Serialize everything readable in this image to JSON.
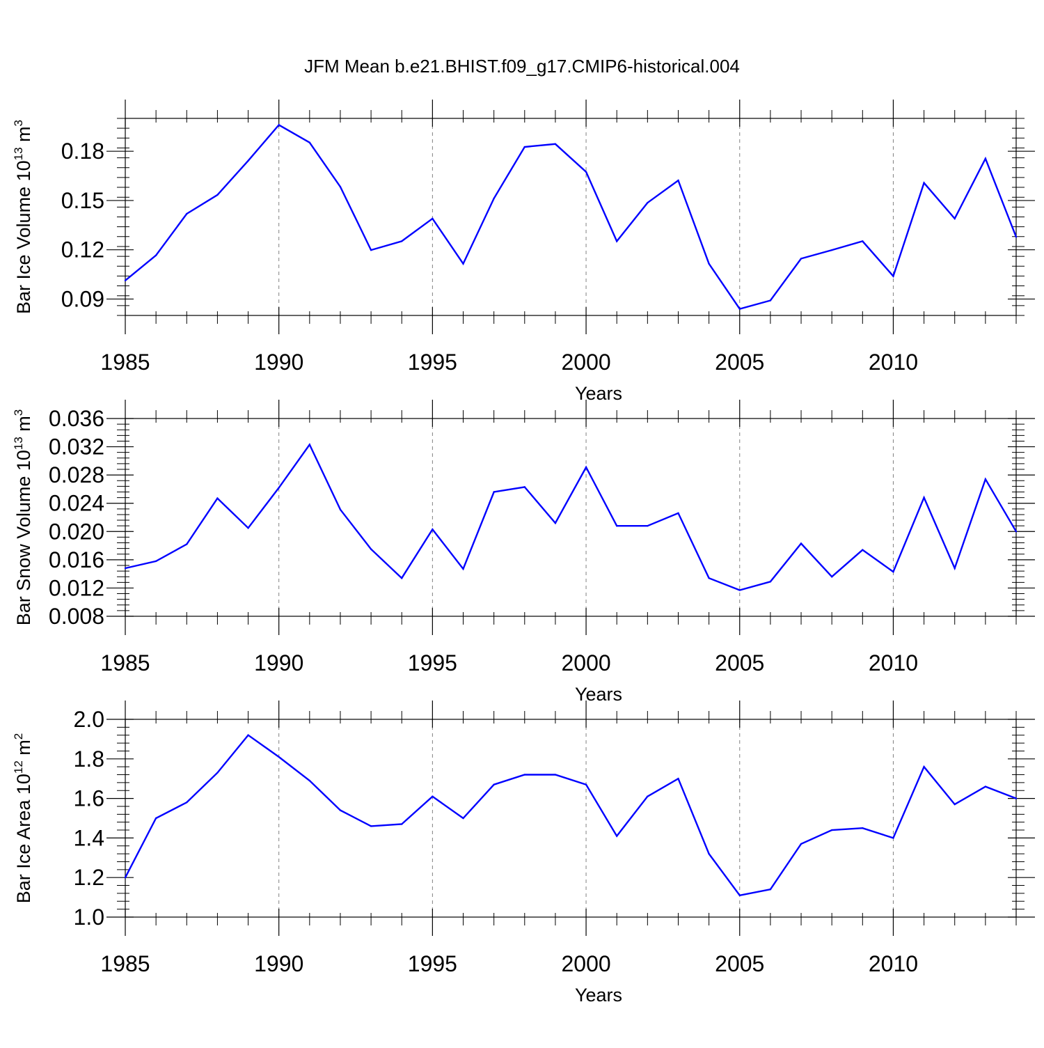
{
  "title": "JFM Mean b.e21.BHIST.f09_g17.CMIP6-historical.004",
  "colors": {
    "line": "#0000ff",
    "axis": "#000000",
    "grid": "#808080"
  },
  "chart_data": [
    {
      "type": "line",
      "xlabel": "Years",
      "ylabel_main": "Bar Ice Volume 10",
      "ylabel_exp": "13",
      "ylabel_unit": " m",
      "ylabel_unit_exp": "3",
      "xlim": [
        1985,
        2014
      ],
      "ylim": [
        0.08,
        0.2
      ],
      "yticks": [
        0.09,
        0.12,
        0.15,
        0.18
      ],
      "ytick_labels": [
        "0.09",
        "0.12",
        "0.15",
        "0.18"
      ],
      "yminor_step": 0.006,
      "xticks": [
        1985,
        1990,
        1995,
        2000,
        2005,
        2010
      ],
      "xtick_labels": [
        "1985",
        "1990",
        "1995",
        "2000",
        "2005",
        "2010"
      ],
      "grid": "vertical dashed at major x ticks",
      "x": [
        1985,
        1986,
        1987,
        1988,
        1989,
        1990,
        1991,
        1992,
        1993,
        1994,
        1995,
        1996,
        1997,
        1998,
        1999,
        2000,
        2001,
        2002,
        2003,
        2004,
        2005,
        2006,
        2007,
        2008,
        2009,
        2010,
        2011,
        2012,
        2013,
        2014
      ],
      "values": [
        0.1013,
        0.1166,
        0.1419,
        0.1534,
        0.1742,
        0.196,
        0.1853,
        0.1583,
        0.1198,
        0.1252,
        0.139,
        0.1115,
        0.1513,
        0.1826,
        0.1844,
        0.1674,
        0.1252,
        0.1486,
        0.1622,
        0.1115,
        0.084,
        0.0891,
        0.1146,
        0.1198,
        0.1252,
        0.1039,
        0.1607,
        0.139,
        0.1755,
        0.1278
      ]
    },
    {
      "type": "line",
      "xlabel": "Years",
      "ylabel_main": "Bar Snow Volume 10",
      "ylabel_exp": "13",
      "ylabel_unit": " m",
      "ylabel_unit_exp": "3",
      "xlim": [
        1985,
        2014
      ],
      "ylim": [
        0.008,
        0.036
      ],
      "yticks": [
        0.008,
        0.012,
        0.016,
        0.02,
        0.024,
        0.028,
        0.032,
        0.036
      ],
      "ytick_labels": [
        "0.008",
        "0.012",
        "0.016",
        "0.020",
        "0.024",
        "0.028",
        "0.032",
        "0.036"
      ],
      "yminor_step": 0.0008,
      "xticks": [
        1985,
        1990,
        1995,
        2000,
        2005,
        2010
      ],
      "xtick_labels": [
        "1985",
        "1990",
        "1995",
        "2000",
        "2005",
        "2010"
      ],
      "grid": "vertical dashed at major x ticks",
      "x": [
        1985,
        1986,
        1987,
        1988,
        1989,
        1990,
        1991,
        1992,
        1993,
        1994,
        1995,
        1996,
        1997,
        1998,
        1999,
        2000,
        2001,
        2002,
        2003,
        2004,
        2005,
        2006,
        2007,
        2008,
        2009,
        2010,
        2011,
        2012,
        2013,
        2014
      ],
      "values": [
        0.0148,
        0.0158,
        0.0182,
        0.0247,
        0.0205,
        0.0262,
        0.0323,
        0.0231,
        0.0175,
        0.0134,
        0.0203,
        0.0147,
        0.0256,
        0.0263,
        0.0212,
        0.0291,
        0.0208,
        0.0208,
        0.0226,
        0.0134,
        0.0117,
        0.0129,
        0.0183,
        0.0136,
        0.0174,
        0.0143,
        0.0248,
        0.0148,
        0.0274,
        0.02
      ]
    },
    {
      "type": "line",
      "xlabel": "Years",
      "ylabel_main": "Bar Ice Area 10",
      "ylabel_exp": "12",
      "ylabel_unit": " m",
      "ylabel_unit_exp": "2",
      "xlim": [
        1985,
        2014
      ],
      "ylim": [
        1.0,
        2.0
      ],
      "yticks": [
        1.0,
        1.2,
        1.4,
        1.6,
        1.8,
        2.0
      ],
      "ytick_labels": [
        "1.0",
        "1.2",
        "1.4",
        "1.6",
        "1.8",
        "2.0"
      ],
      "yminor_step": 0.04,
      "xticks": [
        1985,
        1990,
        1995,
        2000,
        2005,
        2010
      ],
      "xtick_labels": [
        "1985",
        "1990",
        "1995",
        "2000",
        "2005",
        "2010"
      ],
      "grid": "vertical dashed at major x ticks",
      "x": [
        1985,
        1986,
        1987,
        1988,
        1989,
        1990,
        1991,
        1992,
        1993,
        1994,
        1995,
        1996,
        1997,
        1998,
        1999,
        2000,
        2001,
        2002,
        2003,
        2004,
        2005,
        2006,
        2007,
        2008,
        2009,
        2010,
        2011,
        2012,
        2013,
        2014
      ],
      "values": [
        1.2,
        1.5,
        1.58,
        1.73,
        1.92,
        1.81,
        1.69,
        1.54,
        1.46,
        1.47,
        1.61,
        1.5,
        1.67,
        1.72,
        1.72,
        1.67,
        1.41,
        1.61,
        1.7,
        1.32,
        1.11,
        1.14,
        1.37,
        1.44,
        1.45,
        1.4,
        1.76,
        1.57,
        1.66,
        1.6
      ]
    }
  ]
}
